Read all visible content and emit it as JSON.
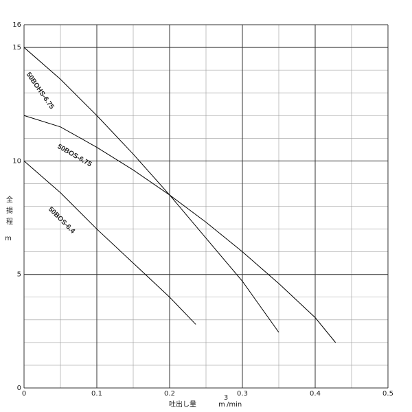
{
  "chart_data": {
    "type": "line",
    "x_label": "吐出し量",
    "x_unit": {
      "base": "m",
      "exponent": "3",
      "per": "/min"
    },
    "y_label": "全揚程",
    "y_unit": "m",
    "xlim": [
      0,
      0.5
    ],
    "xticks": [
      0,
      0.1,
      0.2,
      0.3,
      0.4,
      0.5
    ],
    "ylim": [
      0,
      16
    ],
    "yticks": [
      0,
      5,
      10,
      15,
      16
    ],
    "grid": true,
    "color": "#000000",
    "series": [
      {
        "name": "50BOHS-6.75",
        "x": [
          0,
          0.05,
          0.1,
          0.15,
          0.2,
          0.25,
          0.3,
          0.35
        ],
        "values": [
          15,
          13.6,
          12.0,
          10.3,
          8.5,
          6.6,
          4.7,
          2.45
        ]
      },
      {
        "name": "50BOS-6.75",
        "x": [
          0,
          0.05,
          0.1,
          0.15,
          0.2,
          0.25,
          0.3,
          0.35,
          0.4,
          0.428
        ],
        "values": [
          12,
          11.5,
          10.6,
          9.6,
          8.5,
          7.3,
          6.0,
          4.6,
          3.1,
          2.0
        ]
      },
      {
        "name": "50BOS-6.4",
        "x": [
          0,
          0.05,
          0.1,
          0.15,
          0.2,
          0.236
        ],
        "values": [
          10,
          8.6,
          7.0,
          5.5,
          4.0,
          2.8
        ]
      }
    ]
  }
}
